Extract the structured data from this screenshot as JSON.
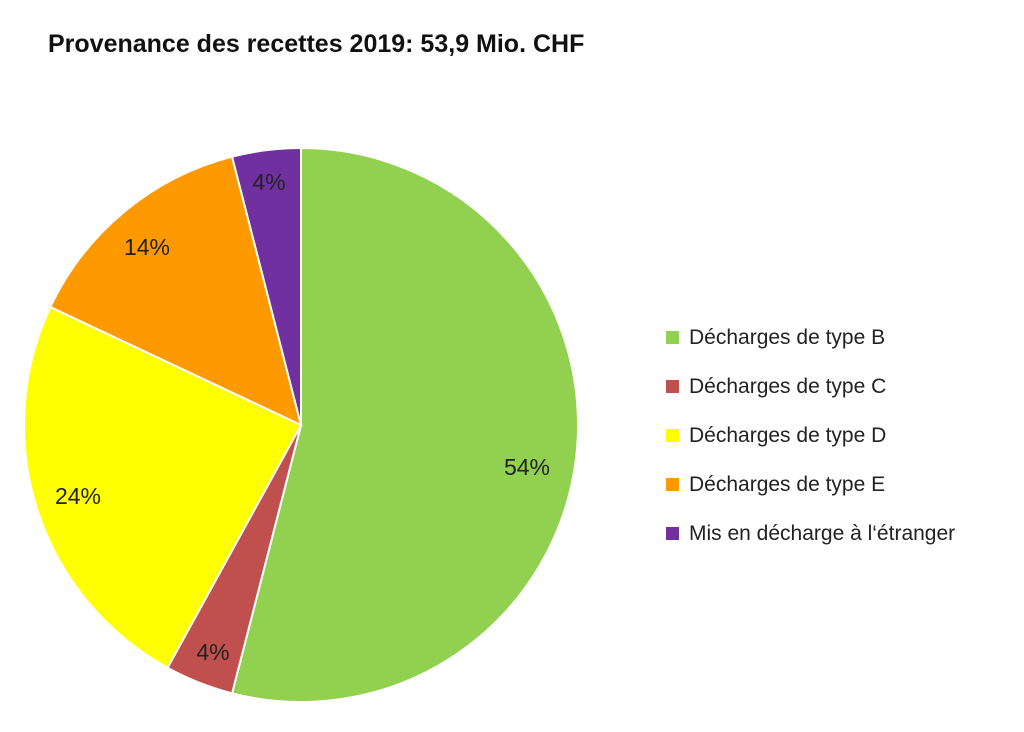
{
  "chart_data": {
    "type": "pie",
    "title": "Provenance des recettes 2019: 53,9 Mio. CHF",
    "categories": [
      "Décharges de type B",
      "Décharges de type C",
      "Décharges de type D",
      "Décharges de type E",
      "Mis en décharge à l‘étranger"
    ],
    "values": [
      54,
      4,
      24,
      14,
      4
    ],
    "labels": [
      "54%",
      "4%",
      "24%",
      "14%",
      "4%"
    ],
    "colors": [
      "#92d050",
      "#c0504d",
      "#ffff00",
      "#ff9900",
      "#7030a0"
    ],
    "start_angle": "12 o'clock",
    "direction": "clockwise",
    "legend_position": "right"
  }
}
